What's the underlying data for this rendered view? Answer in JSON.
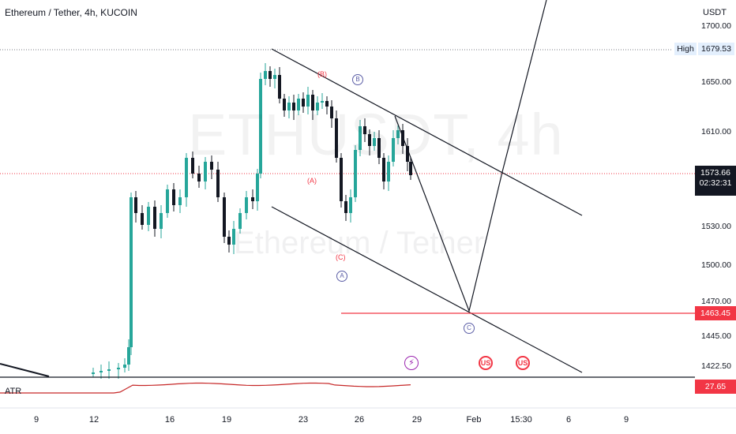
{
  "header": {
    "title": "Ethereum / Tether, 4h, KUCOIN",
    "currency": "USDT",
    "watermark_symbol": "ETHUSDT, 4h",
    "watermark_name": "Ethereum / Tether"
  },
  "price_axis": {
    "ticks": [
      "1700.00",
      "1650.00",
      "1610.00",
      "1530.00",
      "1500.00",
      "1470.00",
      "1445.00",
      "1422.50"
    ],
    "high_label": "High",
    "high_value": "1679.53",
    "current_price": "1573.66",
    "countdown": "02:32:31",
    "target_level": "1463.45",
    "atr_value": "27.65"
  },
  "time_axis": {
    "ticks": [
      "9",
      "12",
      "16",
      "19",
      "23",
      "26",
      "29",
      "Feb",
      "15:30",
      "6",
      "9"
    ]
  },
  "indicator": {
    "name": "ATR"
  },
  "waves": {
    "red": [
      "(B)",
      "(A)",
      "(C)"
    ],
    "circled": [
      "B",
      "A",
      "C"
    ]
  },
  "events": {
    "lightning_icon": "lightning-icon",
    "flag_icon": "us-flag-icon",
    "flag_glyph": "US"
  },
  "colors": {
    "up": "#26a69a",
    "down": "#131722",
    "drawing": "#131722",
    "target_line": "#f23645",
    "atr_line": "#c62828",
    "high_bg": "#e3effd",
    "wave_red": "#f23645",
    "wave_circle": "#5b5ea6"
  }
}
